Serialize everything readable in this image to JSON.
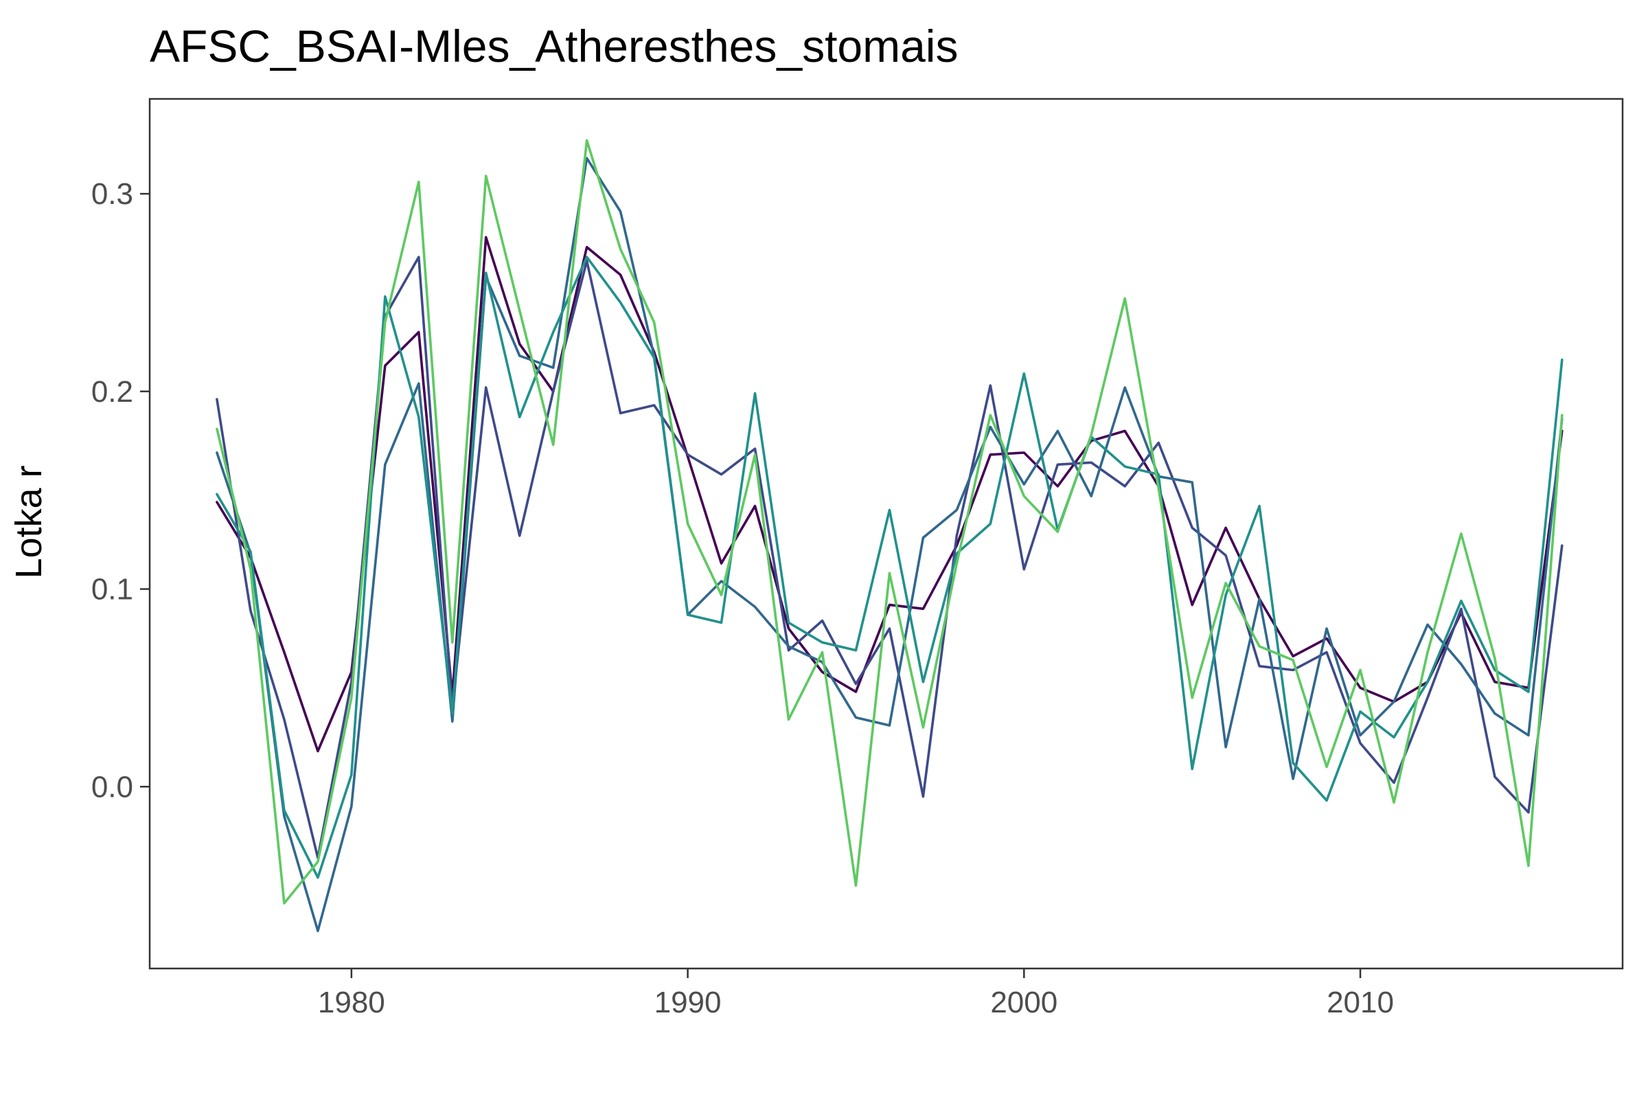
{
  "chart_data": {
    "type": "line",
    "title": "AFSC_BSAI-Mles_Atheresthes_stomais",
    "xlabel": "",
    "ylabel": "Lotka r",
    "xlim": [
      1974,
      2017.8
    ],
    "ylim": [
      -0.092,
      0.348
    ],
    "x_ticks": [
      1980,
      1990,
      2000,
      2010
    ],
    "y_ticks": [
      0.0,
      0.1,
      0.2,
      0.3
    ],
    "x_tick_labels": [
      "1980",
      "1990",
      "2000",
      "2010"
    ],
    "y_tick_labels": [
      "0.0",
      "0.1",
      "0.2",
      "0.3"
    ],
    "grid": false,
    "legend": "none",
    "x": [
      1976,
      1977,
      1978,
      1979,
      1980,
      1981,
      1982,
      1983,
      1984,
      1985,
      1986,
      1987,
      1988,
      1989,
      1990,
      1991,
      1992,
      1993,
      1994,
      1995,
      1996,
      1997,
      1998,
      1999,
      2000,
      2001,
      2002,
      2003,
      2004,
      2005,
      2006,
      2007,
      2008,
      2009,
      2010,
      2011,
      2012,
      2013,
      2014,
      2015,
      2016
    ],
    "series": [
      {
        "color": "#440154",
        "values": [
          0.144,
          0.116,
          0.068,
          0.018,
          0.058,
          0.213,
          0.23,
          0.046,
          0.278,
          0.224,
          0.2,
          0.273,
          0.259,
          0.22,
          0.167,
          0.113,
          0.142,
          0.08,
          0.058,
          0.048,
          0.092,
          0.09,
          0.122,
          0.168,
          0.169,
          0.152,
          0.175,
          0.18,
          0.152,
          0.092,
          0.131,
          0.095,
          0.066,
          0.075,
          0.05,
          0.043,
          0.053,
          0.088,
          0.053,
          0.05,
          0.18
        ]
      },
      {
        "color": "#3e4a89",
        "values": [
          0.196,
          0.089,
          0.034,
          -0.036,
          0.053,
          0.238,
          0.268,
          0.04,
          0.202,
          0.127,
          0.2,
          0.266,
          0.189,
          0.193,
          0.168,
          0.158,
          0.171,
          0.069,
          0.084,
          0.052,
          0.08,
          -0.005,
          0.127,
          0.203,
          0.11,
          0.163,
          0.164,
          0.152,
          0.174,
          0.131,
          0.117,
          0.061,
          0.059,
          0.068,
          0.022,
          0.002,
          0.045,
          0.09,
          0.005,
          -0.013,
          0.122
        ]
      },
      {
        "color": "#31688e",
        "values": [
          0.169,
          0.118,
          -0.015,
          -0.073,
          -0.01,
          0.163,
          0.204,
          0.033,
          0.258,
          0.218,
          0.212,
          0.318,
          0.291,
          0.218,
          0.087,
          0.104,
          0.091,
          0.071,
          0.063,
          0.035,
          0.031,
          0.126,
          0.14,
          0.182,
          0.153,
          0.18,
          0.147,
          0.202,
          0.157,
          0.154,
          0.02,
          0.095,
          0.004,
          0.08,
          0.026,
          0.043,
          0.082,
          0.062,
          0.037,
          0.026,
          0.186
        ]
      },
      {
        "color": "#21918c",
        "values": [
          0.148,
          0.119,
          -0.012,
          -0.046,
          0.006,
          0.248,
          0.187,
          0.037,
          0.26,
          0.187,
          0.23,
          0.268,
          0.245,
          0.217,
          0.087,
          0.083,
          0.199,
          0.083,
          0.073,
          0.069,
          0.14,
          0.053,
          0.118,
          0.133,
          0.209,
          0.13,
          0.177,
          0.162,
          0.158,
          0.009,
          0.097,
          0.142,
          0.012,
          -0.007,
          0.038,
          0.025,
          0.053,
          0.094,
          0.059,
          0.048,
          0.216
        ]
      },
      {
        "color": "#5ec962",
        "values": [
          0.181,
          0.11,
          -0.059,
          -0.038,
          0.045,
          0.235,
          0.306,
          0.073,
          0.309,
          0.241,
          0.173,
          0.327,
          0.272,
          0.235,
          0.133,
          0.097,
          0.168,
          0.034,
          0.068,
          -0.05,
          0.108,
          0.03,
          0.113,
          0.188,
          0.147,
          0.129,
          0.178,
          0.247,
          0.151,
          0.045,
          0.103,
          0.071,
          0.064,
          0.01,
          0.059,
          -0.008,
          0.068,
          0.128,
          0.065,
          -0.04,
          0.188
        ]
      }
    ]
  }
}
